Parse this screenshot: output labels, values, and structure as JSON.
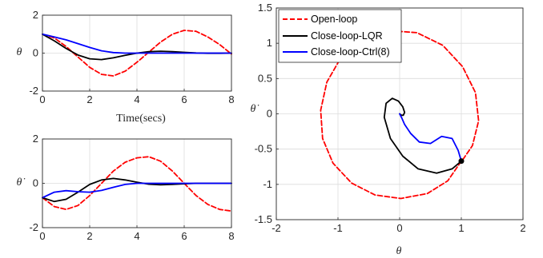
{
  "chart_data": [
    {
      "id": "theta-time",
      "type": "line",
      "xlabel": "Time(secs)",
      "ylabel": "θ",
      "xlim": [
        0,
        8
      ],
      "ylim": [
        -2,
        2
      ],
      "xticks": [
        "0",
        "2",
        "4",
        "6",
        "8"
      ],
      "yticks": [
        "-2",
        "0",
        "2"
      ],
      "grid": true,
      "series": [
        {
          "color": "#ff0000",
          "dash": true,
          "x": [
            0,
            0.5,
            1,
            1.5,
            2,
            2.5,
            3,
            3.5,
            4,
            4.5,
            5,
            5.5,
            6,
            6.5,
            7,
            7.5,
            8
          ],
          "y": [
            1.0,
            0.8,
            0.35,
            -0.2,
            -0.75,
            -1.12,
            -1.2,
            -0.95,
            -0.48,
            0.05,
            0.58,
            1.0,
            1.2,
            1.15,
            0.85,
            0.45,
            -0.05
          ]
        },
        {
          "color": "#000000",
          "dash": false,
          "x": [
            0,
            0.5,
            1,
            1.5,
            2,
            2.5,
            3,
            3.5,
            4,
            4.5,
            5,
            5.5,
            6,
            6.5,
            7,
            7.5,
            8
          ],
          "y": [
            1.0,
            0.65,
            0.25,
            -0.1,
            -0.3,
            -0.34,
            -0.25,
            -0.12,
            0.0,
            0.08,
            0.1,
            0.08,
            0.04,
            0.01,
            -0.01,
            -0.01,
            0.0
          ]
        },
        {
          "color": "#0000ff",
          "dash": false,
          "x": [
            0,
            0.5,
            1,
            1.5,
            2,
            2.5,
            3,
            3.5,
            4,
            4.5,
            5,
            5.5,
            6,
            6.5,
            7,
            7.5,
            8
          ],
          "y": [
            1.0,
            0.85,
            0.7,
            0.5,
            0.3,
            0.12,
            0.03,
            0.0,
            0.0,
            0.0,
            0.0,
            0.0,
            0.0,
            0.0,
            0.0,
            0.0,
            0.0
          ]
        }
      ]
    },
    {
      "id": "thetadot-time",
      "type": "line",
      "xlabel": "",
      "ylabel": "θ̇",
      "xlim": [
        0,
        8
      ],
      "ylim": [
        -2,
        2
      ],
      "xticks": [
        "0",
        "2",
        "4",
        "6",
        "8"
      ],
      "yticks": [
        "-2",
        "0",
        "2"
      ],
      "grid": true,
      "series": [
        {
          "color": "#ff0000",
          "dash": true,
          "x": [
            0,
            0.5,
            1,
            1.5,
            2,
            2.5,
            3,
            3.5,
            4,
            4.5,
            5,
            5.5,
            6,
            6.5,
            7,
            7.5,
            8
          ],
          "y": [
            -0.65,
            -1.05,
            -1.18,
            -1.0,
            -0.55,
            0.0,
            0.55,
            0.95,
            1.15,
            1.2,
            1.0,
            0.55,
            0.0,
            -0.55,
            -0.95,
            -1.18,
            -1.25
          ]
        },
        {
          "color": "#000000",
          "dash": false,
          "x": [
            0,
            0.5,
            1,
            1.5,
            2,
            2.5,
            3,
            3.5,
            4,
            4.5,
            5,
            5.5,
            6,
            6.5,
            7,
            7.5,
            8
          ],
          "y": [
            -0.65,
            -0.82,
            -0.72,
            -0.4,
            -0.05,
            0.15,
            0.22,
            0.15,
            0.05,
            -0.04,
            -0.07,
            -0.05,
            -0.02,
            0.0,
            0.0,
            0.0,
            0.0
          ]
        },
        {
          "color": "#0000ff",
          "dash": false,
          "x": [
            0,
            0.5,
            1,
            1.5,
            2,
            2.5,
            3,
            3.5,
            4,
            4.5,
            5,
            5.5,
            6,
            6.5,
            7,
            7.5,
            8
          ],
          "y": [
            -0.65,
            -0.4,
            -0.33,
            -0.38,
            -0.4,
            -0.32,
            -0.18,
            -0.05,
            0.0,
            0.0,
            0.0,
            0.0,
            0.0,
            0.0,
            0.0,
            0.0,
            0.0
          ]
        }
      ]
    },
    {
      "id": "phase-portrait",
      "type": "line",
      "xlabel": "θ",
      "ylabel": "θ̇",
      "xlim": [
        -2,
        2
      ],
      "ylim": [
        -1.5,
        1.5
      ],
      "xticks": [
        "-2",
        "-1",
        "0",
        "1",
        "2"
      ],
      "yticks": [
        "-1.5",
        "-1",
        "-0.5",
        "0",
        "0.5",
        "1",
        "1.5"
      ],
      "grid": true,
      "legend": "top-left",
      "series": [
        {
          "name": "Open-loop",
          "color": "#ff0000",
          "dash": true,
          "x": [
            1.0,
            0.78,
            0.45,
            0.02,
            -0.4,
            -0.78,
            -1.08,
            -1.25,
            -1.28,
            -1.18,
            -0.95,
            -0.6,
            -0.18,
            0.28,
            0.7,
            1.02,
            1.23,
            1.28,
            1.18,
            1.0
          ],
          "y": [
            -0.67,
            -0.95,
            -1.13,
            -1.2,
            -1.15,
            -0.98,
            -0.7,
            -0.35,
            0.05,
            0.45,
            0.8,
            1.05,
            1.18,
            1.15,
            0.97,
            0.67,
            0.3,
            -0.1,
            -0.45,
            -0.68
          ]
        },
        {
          "name": "Close-loop-LQR",
          "color": "#000000",
          "dash": false,
          "x": [
            1.0,
            0.85,
            0.6,
            0.3,
            0.05,
            -0.15,
            -0.25,
            -0.22,
            -0.12,
            -0.02,
            0.05,
            0.08,
            0.06,
            0.03,
            0.0
          ],
          "y": [
            -0.67,
            -0.78,
            -0.84,
            -0.78,
            -0.6,
            -0.35,
            -0.05,
            0.15,
            0.22,
            0.18,
            0.1,
            0.02,
            -0.02,
            -0.02,
            0.0
          ]
        },
        {
          "name": "Close-loop-Ctrl(8)",
          "color": "#0000ff",
          "dash": false,
          "x": [
            1.0,
            0.95,
            0.85,
            0.68,
            0.5,
            0.32,
            0.18,
            0.08,
            0.03,
            0.0
          ],
          "y": [
            -0.67,
            -0.52,
            -0.35,
            -0.32,
            -0.42,
            -0.4,
            -0.28,
            -0.15,
            -0.05,
            0.0
          ]
        }
      ],
      "points": [
        {
          "x": 1.0,
          "y": -0.67,
          "color": "#000000"
        }
      ]
    }
  ]
}
